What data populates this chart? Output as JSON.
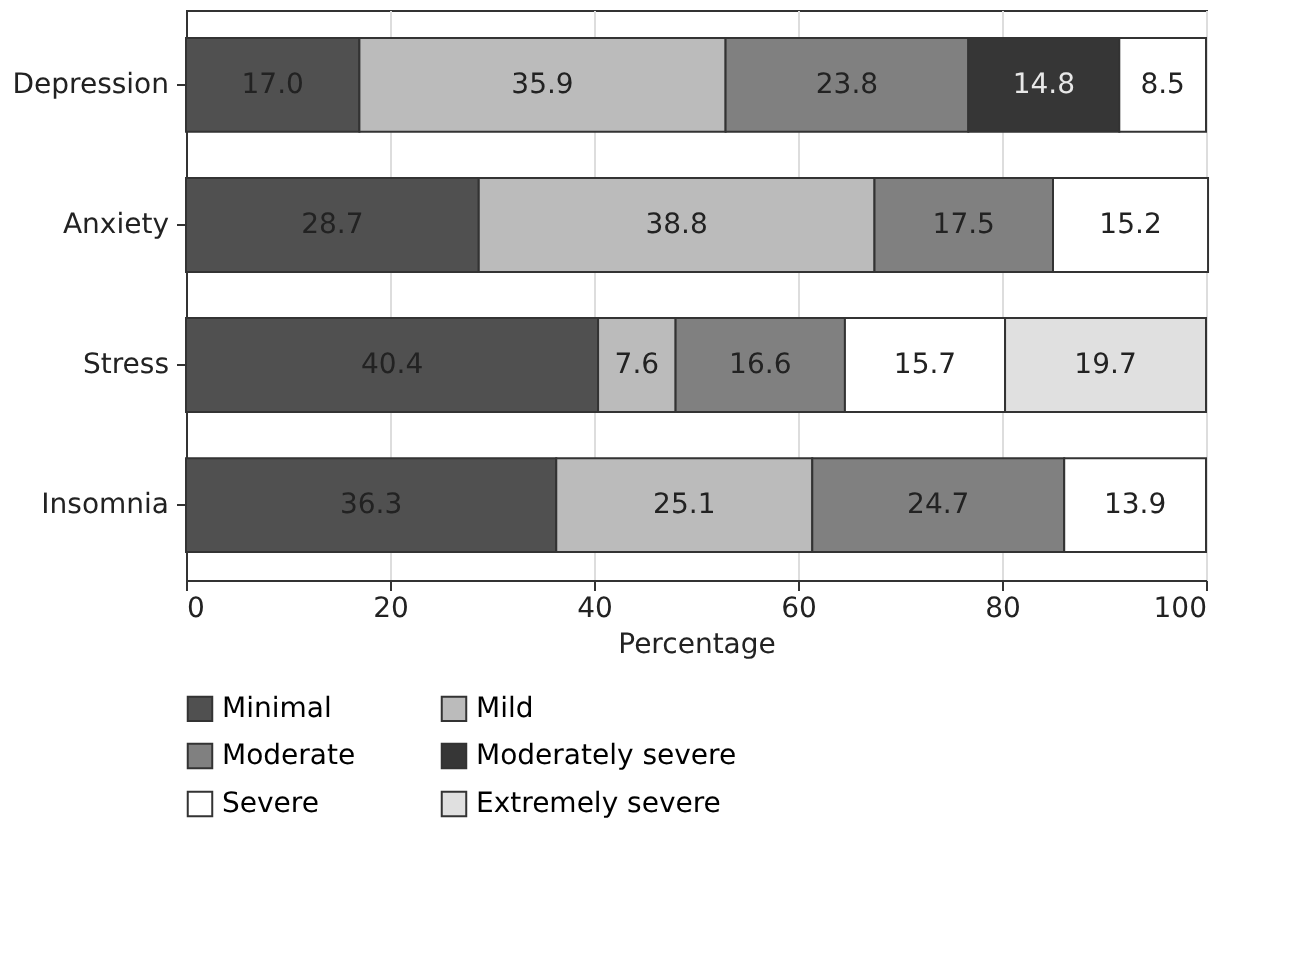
{
  "chart_data": {
    "type": "bar",
    "orientation": "horizontal",
    "stacked": true,
    "categories": [
      "Depression",
      "Anxiety",
      "Stress",
      "Insomnia"
    ],
    "series": [
      {
        "name": "Minimal",
        "color": "#505050",
        "values": [
          17.0,
          28.7,
          40.4,
          36.3
        ],
        "value_labels": [
          "17.0",
          "28.7",
          "40.4",
          "36.3"
        ]
      },
      {
        "name": "Mild",
        "color": "#bbbbbb",
        "values": [
          35.9,
          38.8,
          7.6,
          25.1
        ],
        "value_labels": [
          "35.9",
          "38.8",
          "7.6",
          "25.1"
        ]
      },
      {
        "name": "Moderate",
        "color": "#808080",
        "values": [
          23.8,
          17.5,
          16.6,
          24.7
        ],
        "value_labels": [
          "23.8",
          "17.5",
          "16.6",
          "24.7"
        ]
      },
      {
        "name": "Moderately severe",
        "color": "#363636",
        "values": [
          14.8,
          null,
          null,
          null
        ],
        "value_labels": [
          "14.8",
          null,
          null,
          null
        ]
      },
      {
        "name": "Severe",
        "color": "#ffffff",
        "values": [
          8.5,
          15.2,
          15.7,
          13.9
        ],
        "value_labels": [
          "8.5",
          "15.2",
          "15.7",
          "13.9"
        ]
      },
      {
        "name": "Extremely severe",
        "color": "#e0e0e0",
        "values": [
          null,
          null,
          19.7,
          null
        ],
        "value_labels": [
          null,
          null,
          "19.7",
          null
        ]
      }
    ],
    "xlabel": "Percentage",
    "xlim": [
      0,
      100
    ],
    "xticks": [
      0,
      20,
      40,
      60,
      80,
      100
    ],
    "grid": "x",
    "legend": "bottom"
  }
}
